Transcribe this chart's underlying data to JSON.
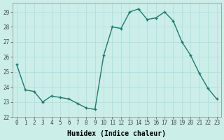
{
  "x": [
    0,
    1,
    2,
    3,
    4,
    5,
    6,
    7,
    8,
    9,
    10,
    11,
    12,
    13,
    14,
    15,
    16,
    17,
    18,
    19,
    20,
    21,
    22,
    23
  ],
  "y": [
    25.5,
    23.8,
    23.7,
    23.0,
    23.4,
    23.3,
    23.2,
    22.9,
    22.6,
    22.5,
    26.1,
    28.0,
    27.9,
    29.0,
    29.2,
    28.5,
    28.6,
    29.0,
    28.4,
    27.0,
    26.1,
    24.9,
    23.9,
    23.2
  ],
  "line_color": "#1f7a70",
  "marker": "+",
  "marker_size": 3.5,
  "line_width": 1.0,
  "bg_color": "#cceee8",
  "grid_color": "#aaddda",
  "xlabel": "Humidex (Indice chaleur)",
  "xlim": [
    -0.5,
    23.5
  ],
  "ylim": [
    22,
    29.6
  ],
  "yticks": [
    22,
    23,
    24,
    25,
    26,
    27,
    28,
    29
  ],
  "xticks": [
    0,
    1,
    2,
    3,
    4,
    5,
    6,
    7,
    8,
    9,
    10,
    11,
    12,
    13,
    14,
    15,
    16,
    17,
    18,
    19,
    20,
    21,
    22,
    23
  ],
  "tick_fontsize": 5.5,
  "label_fontsize": 7.0
}
